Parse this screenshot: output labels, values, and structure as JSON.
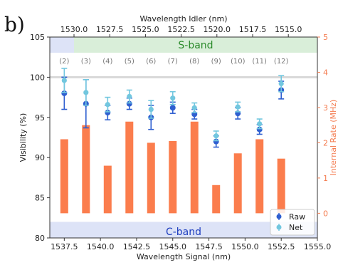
{
  "panel_label": "b)",
  "chart_data": {
    "type": "bar+errorbar",
    "top_axis": {
      "label": "Wavelength Idler (nm)",
      "ticks": [
        1530.0,
        1527.5,
        1525.0,
        1522.5,
        1520.0,
        1517.5,
        1515.0
      ],
      "tick_labels": [
        "1530.0",
        "1527.5",
        "1525.0",
        "1522.5",
        "1520.0",
        "1517.5",
        "1515.0"
      ]
    },
    "x_axis": {
      "label": "Wavelength Signal (nm)",
      "range": [
        1536.5,
        1555.0
      ],
      "ticks": [
        1537.5,
        1540.0,
        1542.5,
        1545.0,
        1547.5,
        1550.0,
        1552.5,
        1555.0
      ],
      "tick_labels": [
        "1537.5",
        "1540.0",
        "1542.5",
        "1545.0",
        "1547.5",
        "1550.0",
        "1552.5",
        "1555.0"
      ]
    },
    "y_axis": {
      "label": "Visibility (%)",
      "range": [
        80,
        105
      ],
      "ticks": [
        80,
        85,
        90,
        95,
        100,
        105
      ]
    },
    "y2_axis": {
      "label": "Internal Rate (MHz)",
      "range": [
        -0.7,
        5
      ],
      "ticks": [
        0,
        1,
        2,
        3,
        4,
        5
      ],
      "color": "#f47c50"
    },
    "bands": [
      {
        "label": "S-band",
        "color": "#d9eed9",
        "text_color": "#2a8a2a"
      },
      {
        "label": "C-band",
        "color": "#dde3f7",
        "text_color": "#1f3fbf"
      }
    ],
    "channels": [
      {
        "label": "(2)",
        "x": 1537.5,
        "raw": 98.0,
        "raw_err": 2.0,
        "net": 99.6,
        "net_err": 1.5,
        "rate": 2.1
      },
      {
        "label": "(3)",
        "x": 1539.0,
        "raw": 96.7,
        "raw_err": 3.0,
        "net": 98.1,
        "net_err": 1.6,
        "rate": 2.5
      },
      {
        "label": "(4)",
        "x": 1540.5,
        "raw": 95.6,
        "raw_err": 0.9,
        "net": 96.6,
        "net_err": 0.9,
        "rate": 1.35
      },
      {
        "label": "(5)",
        "x": 1542.0,
        "raw": 96.7,
        "raw_err": 0.7,
        "net": 97.6,
        "net_err": 0.8,
        "rate": 2.6
      },
      {
        "label": "(6)",
        "x": 1543.5,
        "raw": 95.0,
        "raw_err": 1.5,
        "net": 96.0,
        "net_err": 1.1,
        "rate": 2.0
      },
      {
        "label": "(7)",
        "x": 1545.0,
        "raw": 96.2,
        "raw_err": 0.7,
        "net": 97.4,
        "net_err": 0.8,
        "rate": 2.05
      },
      {
        "label": "(8)",
        "x": 1546.5,
        "raw": 95.4,
        "raw_err": 0.6,
        "net": 96.2,
        "net_err": 0.6,
        "rate": 2.6
      },
      {
        "label": "(9)",
        "x": 1548.0,
        "raw": 92.0,
        "raw_err": 0.7,
        "net": 92.7,
        "net_err": 0.6,
        "rate": 0.8
      },
      {
        "label": "(10)",
        "x": 1549.5,
        "raw": 95.5,
        "raw_err": 0.7,
        "net": 96.3,
        "net_err": 0.6,
        "rate": 1.7
      },
      {
        "label": "(11)",
        "x": 1551.0,
        "raw": 93.5,
        "raw_err": 0.6,
        "net": 94.2,
        "net_err": 0.6,
        "rate": 2.1
      },
      {
        "label": "(12)",
        "x": 1552.5,
        "raw": 98.4,
        "raw_err": 1.1,
        "net": 99.2,
        "net_err": 1.0,
        "rate": 1.55
      }
    ],
    "legend": {
      "position": "bottom-right",
      "entries": [
        {
          "label": "Raw",
          "color": "#2f5fd0"
        },
        {
          "label": "Net",
          "color": "#72c7df"
        }
      ]
    },
    "bar_color": "#fb7d4d",
    "reference_line": 100
  }
}
